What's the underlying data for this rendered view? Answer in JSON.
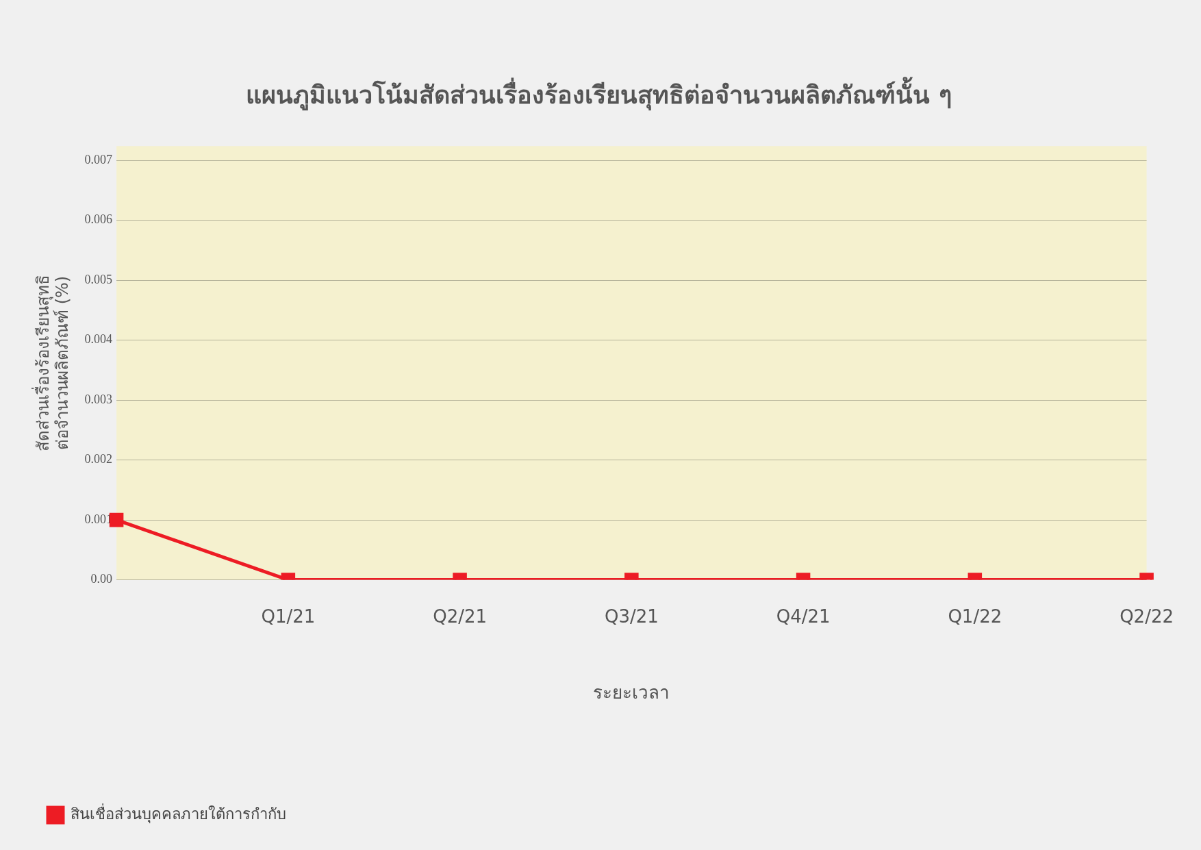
{
  "chart_data": {
    "type": "line",
    "title": "แผนภูมิแนวโน้มสัดส่วนเรื่องร้องเรียนสุทธิต่อจำนวนผลิตภัณฑ์นั้น ๆ",
    "xlabel": "ระยะเวลา",
    "ylabel": "สัดส่วนเรื่องร้องเรียนสุทธิ\nต่อจำนวนผลิตภัณฑ์ (%)",
    "categories": [
      null,
      "Q1/21",
      "Q2/21",
      "Q3/21",
      "Q4/21",
      "Q1/22",
      "Q2/22"
    ],
    "series": [
      {
        "name": "สินเชื่อส่วนบุคคลภายใต้การกำกับ",
        "color": "#ed1c24",
        "values": [
          0.001,
          0,
          0,
          0,
          0,
          0,
          0
        ]
      }
    ],
    "ylim": [
      0,
      0.00724
    ],
    "yticks": [
      {
        "value": 0,
        "label": "0.00"
      },
      0.001,
      0.002,
      0.003,
      0.004,
      0.005,
      0.006,
      0.007
    ],
    "grid": "y",
    "legend": "bottom left",
    "marker": "square",
    "line_style": "solid"
  }
}
